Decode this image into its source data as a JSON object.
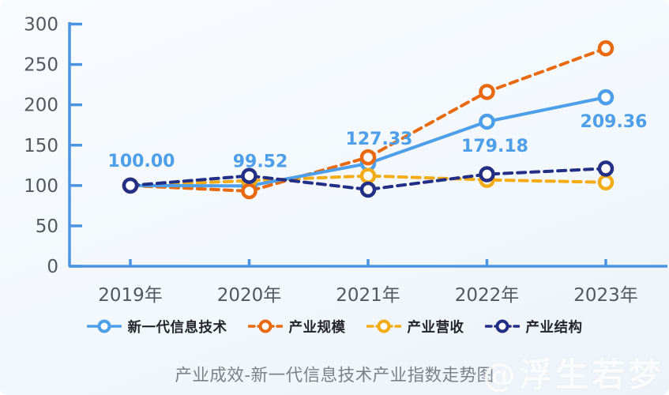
{
  "title": {
    "text": "产业成效-新一代信息技术产业指数走势图",
    "color": "#7d8287"
  },
  "watermark": {
    "text": "@浮生若梦"
  },
  "chart_data": {
    "type": "line",
    "categories": [
      "2019年",
      "2020年",
      "2021年",
      "2022年",
      "2023年"
    ],
    "series": [
      {
        "name": "新一代信息技术",
        "color": "#4c9fe8",
        "line_style": "solid",
        "values": [
          100.0,
          99.52,
          127.33,
          179.18,
          209.36
        ]
      },
      {
        "name": "产业规模",
        "color": "#e8690f",
        "line_style": "dashed",
        "values": [
          100,
          93,
          135,
          216,
          270
        ]
      },
      {
        "name": "产业营收",
        "color": "#f3ac15",
        "line_style": "dashed",
        "values": [
          100,
          106,
          112,
          107,
          104
        ]
      },
      {
        "name": "产业结构",
        "color": "#232e85",
        "line_style": "dashed",
        "values": [
          100,
          112,
          95,
          114,
          121
        ]
      }
    ],
    "point_labels": [
      {
        "series": 0,
        "index": 0,
        "text": "100.00",
        "placement": "above"
      },
      {
        "series": 0,
        "index": 1,
        "text": "99.52",
        "placement": "above"
      },
      {
        "series": 0,
        "index": 2,
        "text": "127.33",
        "placement": "above"
      },
      {
        "series": 0,
        "index": 3,
        "text": "179.18",
        "placement": "below"
      },
      {
        "series": 0,
        "index": 4,
        "text": "209.36",
        "placement": "below"
      }
    ],
    "ylim": [
      0,
      300
    ],
    "y_ticks": [
      0,
      50,
      100,
      150,
      200,
      250,
      300
    ],
    "grid": false,
    "legend_position": "bottom",
    "axis_color": "#4a94e2",
    "tick_label_color": "#54585e",
    "value_label_color": "#4c9fe8"
  }
}
